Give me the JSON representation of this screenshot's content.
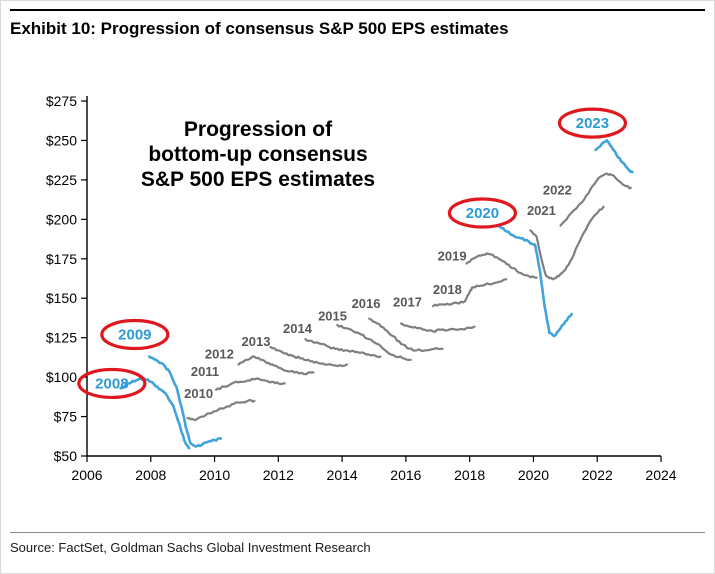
{
  "header": {
    "title": "Exhibit 10: Progression of consensus S&P 500 EPS estimates"
  },
  "footer": {
    "source": "Source: FactSet, Goldman Sachs Global Investment Research"
  },
  "annotation": {
    "lines": [
      "Progression of",
      "bottom-up consensus",
      "S&P 500 EPS estimates"
    ]
  },
  "colors": {
    "highlight_line": "#41a3da",
    "base_line": "#7f7f7f",
    "label_gray": "#595959",
    "label_blue": "#2d9bd3",
    "ellipse_red": "#e0181e",
    "axis": "#000000"
  },
  "chart_data": {
    "type": "line",
    "title": "Progression of bottom-up consensus S&P 500 EPS estimates",
    "xlabel": "",
    "ylabel": "",
    "legend": "none",
    "grid": false,
    "x_axis": {
      "min": 2006,
      "max": 2024,
      "ticks": [
        {
          "value": 2006,
          "label": "2006"
        },
        {
          "value": 2008,
          "label": "2008"
        },
        {
          "value": 2010,
          "label": "2010"
        },
        {
          "value": 2012,
          "label": "2012"
        },
        {
          "value": 2014,
          "label": "2014"
        },
        {
          "value": 2016,
          "label": "2016"
        },
        {
          "value": 2018,
          "label": "2018"
        },
        {
          "value": 2020,
          "label": "2020"
        },
        {
          "value": 2022,
          "label": "2022"
        },
        {
          "value": 2024,
          "label": "2024"
        }
      ]
    },
    "y_axis": {
      "min": 50,
      "max": 275,
      "ticks": [
        {
          "value": 50,
          "label": "$50"
        },
        {
          "value": 75,
          "label": "$75"
        },
        {
          "value": 100,
          "label": "$100"
        },
        {
          "value": 125,
          "label": "$125"
        },
        {
          "value": 150,
          "label": "$150"
        },
        {
          "value": 175,
          "label": "$175"
        },
        {
          "value": 200,
          "label": "$200"
        },
        {
          "value": 225,
          "label": "$225"
        },
        {
          "value": 250,
          "label": "$250"
        },
        {
          "value": 275,
          "label": "$275"
        }
      ]
    },
    "series": [
      {
        "name": "2008",
        "highlight": true,
        "circled": true,
        "label": {
          "x": 2006.78,
          "y": 96
        },
        "x": [
          2007.05,
          2007.3,
          2007.55,
          2007.8,
          2008.0,
          2008.2,
          2008.45,
          2008.7,
          2008.9,
          2009.05,
          2009.2
        ],
        "values": [
          93,
          96,
          98,
          99,
          97,
          94,
          90,
          82,
          70,
          60,
          55
        ]
      },
      {
        "name": "2009",
        "highlight": true,
        "circled": true,
        "label": {
          "x": 2007.5,
          "y": 127
        },
        "x": [
          2007.95,
          2008.15,
          2008.4,
          2008.6,
          2008.8,
          2008.95,
          2009.1,
          2009.25,
          2009.4,
          2009.6,
          2009.8,
          2010.0,
          2010.2
        ],
        "values": [
          113,
          111,
          108,
          103,
          94,
          82,
          68,
          58,
          56,
          57,
          59,
          60,
          61
        ]
      },
      {
        "name": "2010",
        "highlight": false,
        "circled": false,
        "label": {
          "x": 2009.5,
          "y": 90
        },
        "x": [
          2009.15,
          2009.35,
          2009.6,
          2009.85,
          2010.1,
          2010.35,
          2010.6,
          2010.85,
          2011.05,
          2011.25
        ],
        "values": [
          74,
          73,
          75,
          77,
          79,
          81,
          83,
          84,
          85,
          85
        ]
      },
      {
        "name": "2011",
        "highlight": false,
        "circled": false,
        "label": {
          "x": 2009.7,
          "y": 104
        },
        "x": [
          2010.05,
          2010.3,
          2010.55,
          2010.8,
          2011.05,
          2011.3,
          2011.55,
          2011.8,
          2012.0,
          2012.2
        ],
        "values": [
          92,
          94,
          96,
          97,
          98,
          99,
          98,
          97,
          96,
          96
        ]
      },
      {
        "name": "2012",
        "highlight": false,
        "circled": false,
        "label": {
          "x": 2010.15,
          "y": 115
        },
        "x": [
          2010.75,
          2011.0,
          2011.25,
          2011.5,
          2011.75,
          2012.0,
          2012.25,
          2012.5,
          2012.8,
          2013.1
        ],
        "values": [
          108,
          111,
          113,
          111,
          108,
          106,
          104,
          103,
          102,
          103
        ]
      },
      {
        "name": "2013",
        "highlight": false,
        "circled": false,
        "label": {
          "x": 2011.3,
          "y": 123
        },
        "x": [
          2011.75,
          2012.0,
          2012.25,
          2012.5,
          2012.75,
          2013.0,
          2013.25,
          2013.55,
          2013.85,
          2014.15
        ],
        "values": [
          119,
          117,
          115,
          113,
          112,
          110,
          109,
          108,
          107,
          108
        ]
      },
      {
        "name": "2014",
        "highlight": false,
        "circled": false,
        "label": {
          "x": 2012.6,
          "y": 131
        },
        "x": [
          2012.85,
          2013.1,
          2013.35,
          2013.6,
          2013.85,
          2014.1,
          2014.4,
          2014.7,
          2014.95,
          2015.2
        ],
        "values": [
          124,
          122,
          121,
          119,
          118,
          117,
          116,
          115,
          114,
          113
        ]
      },
      {
        "name": "2015",
        "highlight": false,
        "circled": false,
        "label": {
          "x": 2013.7,
          "y": 139
        },
        "x": [
          2013.85,
          2014.1,
          2014.35,
          2014.6,
          2014.85,
          2015.1,
          2015.35,
          2015.6,
          2015.9,
          2016.15
        ],
        "values": [
          133,
          131,
          129,
          127,
          124,
          121,
          117,
          114,
          112,
          111
        ]
      },
      {
        "name": "2016",
        "highlight": false,
        "circled": false,
        "label": {
          "x": 2014.75,
          "y": 147
        },
        "x": [
          2014.85,
          2015.1,
          2015.35,
          2015.6,
          2015.85,
          2016.1,
          2016.35,
          2016.6,
          2016.9,
          2017.15
        ],
        "values": [
          137,
          134,
          130,
          126,
          121,
          118,
          117,
          117,
          118,
          118
        ]
      },
      {
        "name": "2017",
        "highlight": false,
        "circled": false,
        "label": {
          "x": 2016.05,
          "y": 148
        },
        "x": [
          2015.85,
          2016.1,
          2016.35,
          2016.6,
          2016.85,
          2017.1,
          2017.35,
          2017.6,
          2017.9,
          2018.15
        ],
        "values": [
          134,
          132,
          131,
          130,
          129,
          130,
          130,
          130,
          131,
          132
        ]
      },
      {
        "name": "2018",
        "highlight": false,
        "circled": false,
        "label": {
          "x": 2017.3,
          "y": 156
        },
        "x": [
          2016.85,
          2017.1,
          2017.35,
          2017.6,
          2017.85,
          2018.0,
          2018.1,
          2018.35,
          2018.6,
          2018.85,
          2019.15
        ],
        "values": [
          145,
          146,
          146,
          147,
          148,
          154,
          157,
          158,
          159,
          160,
          162
        ]
      },
      {
        "name": "2019",
        "highlight": false,
        "circled": false,
        "label": {
          "x": 2017.45,
          "y": 177
        },
        "x": [
          2017.9,
          2018.1,
          2018.35,
          2018.6,
          2018.85,
          2019.1,
          2019.35,
          2019.6,
          2019.85,
          2020.1
        ],
        "values": [
          172,
          175,
          177,
          178,
          176,
          173,
          169,
          166,
          164,
          163
        ]
      },
      {
        "name": "2020",
        "highlight": true,
        "circled": true,
        "label": {
          "x": 2018.4,
          "y": 204
        },
        "x": [
          2018.9,
          2019.1,
          2019.35,
          2019.6,
          2019.85,
          2020.05,
          2020.2,
          2020.35,
          2020.5,
          2020.65,
          2020.85,
          2021.05,
          2021.2
        ],
        "values": [
          196,
          193,
          190,
          188,
          186,
          184,
          168,
          145,
          128,
          126,
          131,
          136,
          140
        ]
      },
      {
        "name": "2021",
        "highlight": false,
        "circled": false,
        "label": {
          "x": 2020.25,
          "y": 206
        },
        "x": [
          2019.9,
          2020.1,
          2020.25,
          2020.4,
          2020.6,
          2020.8,
          2021.0,
          2021.2,
          2021.45,
          2021.7,
          2021.95,
          2022.2
        ],
        "values": [
          193,
          189,
          175,
          164,
          162,
          164,
          168,
          175,
          186,
          196,
          203,
          208
        ]
      },
      {
        "name": "2022",
        "highlight": false,
        "circled": false,
        "label": {
          "x": 2020.75,
          "y": 219
        },
        "x": [
          2020.85,
          2021.1,
          2021.35,
          2021.6,
          2021.85,
          2022.1,
          2022.3,
          2022.5,
          2022.7,
          2022.9,
          2023.05
        ],
        "values": [
          196,
          202,
          207,
          213,
          221,
          227,
          229,
          228,
          224,
          221,
          220
        ]
      },
      {
        "name": "2023",
        "highlight": true,
        "circled": true,
        "label": {
          "x": 2021.85,
          "y": 261
        },
        "x": [
          2021.95,
          2022.15,
          2022.3,
          2022.45,
          2022.6,
          2022.8,
          2023.0,
          2023.1
        ],
        "values": [
          244,
          248,
          250,
          246,
          241,
          236,
          231,
          230
        ]
      }
    ]
  }
}
